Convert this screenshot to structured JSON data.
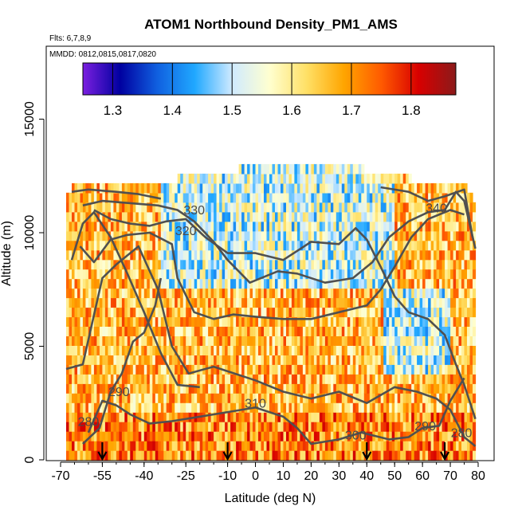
{
  "chart_data": {
    "type": "heatmap",
    "title": "ATOM1 Northbound Density_PM1_AMS",
    "subtitle_flights": "Flts: 6,7,8,9",
    "subtitle_dates": "MMDD: 0812,0815,0817,0820",
    "xlabel": "Latitude (deg N)",
    "ylabel": "Altitude (m)",
    "xlim": [
      -70,
      80
    ],
    "ylim": [
      0,
      17500
    ],
    "x_ticks": [
      -70,
      -55,
      -40,
      -25,
      -10,
      0,
      10,
      20,
      30,
      40,
      50,
      60,
      70,
      80
    ],
    "y_ticks": [
      0,
      5000,
      10000,
      15000
    ],
    "colorbar": {
      "range": [
        1.25,
        1.875
      ],
      "ticks": [
        1.3,
        1.4,
        1.5,
        1.6,
        1.7,
        1.8
      ],
      "stops": [
        "#7b1fe0",
        "#0000a0",
        "#1060e0",
        "#20a8ff",
        "#cfeaff",
        "#ffffd0",
        "#ffe066",
        "#ffa500",
        "#ff5a00",
        "#d80000",
        "#8b1a1a"
      ]
    },
    "coverage_top_altitude": [
      [
        -68,
        11500
      ],
      [
        -65,
        12000
      ],
      [
        -30,
        12000
      ],
      [
        -25,
        12500
      ],
      [
        30,
        12800
      ],
      [
        35,
        13000
      ],
      [
        40,
        12500
      ],
      [
        50,
        12300
      ],
      [
        65,
        12000
      ],
      [
        75,
        11800
      ],
      [
        79,
        11000
      ]
    ],
    "contour_labels": [
      {
        "value": "330",
        "x": -22,
        "y": 10800
      },
      {
        "value": "320",
        "x": -25,
        "y": 9900
      },
      {
        "value": "290",
        "x": -49,
        "y": 2800
      },
      {
        "value": "280",
        "x": -60,
        "y": 1500
      },
      {
        "value": "310",
        "x": 0,
        "y": 2300
      },
      {
        "value": "300",
        "x": 36,
        "y": 900
      },
      {
        "value": "290",
        "x": 61,
        "y": 1300
      },
      {
        "value": "280",
        "x": 74,
        "y": 1000
      },
      {
        "value": "340",
        "x": 65,
        "y": 10900
      }
    ],
    "profile_arrows_latitude": [
      -55,
      -10,
      40,
      68
    ]
  }
}
